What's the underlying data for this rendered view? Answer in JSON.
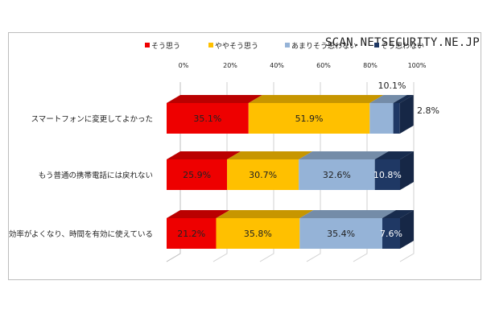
{
  "watermark": "SCAN.NETSECURITY.NE.JP",
  "chart_data": {
    "type": "bar",
    "orientation": "horizontal",
    "stacked": true,
    "categories": [
      "スマートフォンに変更してよかった",
      "もう普通の携帯電話には戻れない",
      "効率がよくなり、時間を有効に使えている"
    ],
    "series": [
      {
        "name": "そう思う",
        "color": "#ee0000",
        "values": [
          35.1,
          25.9,
          21.2
        ],
        "labels": [
          "35.1%",
          "25.9%",
          "21.2%"
        ]
      },
      {
        "name": "ややそう思う",
        "color": "#ffc000",
        "values": [
          51.9,
          30.7,
          35.8
        ],
        "labels": [
          "51.9%",
          "30.7%",
          "35.8%"
        ]
      },
      {
        "name": "あまりそう思わない",
        "color": "#95b3d7",
        "values": [
          10.1,
          32.6,
          35.4
        ],
        "labels": [
          "10.1%",
          "32.6%",
          "35.4%"
        ]
      },
      {
        "name": "そう思わない",
        "color": "#1f3864",
        "values": [
          2.8,
          10.8,
          7.6
        ],
        "labels": [
          "2.8%",
          "10.8%",
          "7.6%"
        ]
      }
    ],
    "xticks": [
      "0%",
      "20%",
      "40%",
      "60%",
      "80%",
      "100%"
    ],
    "xlim": [
      0,
      100
    ],
    "grid": true,
    "legend": "top"
  }
}
